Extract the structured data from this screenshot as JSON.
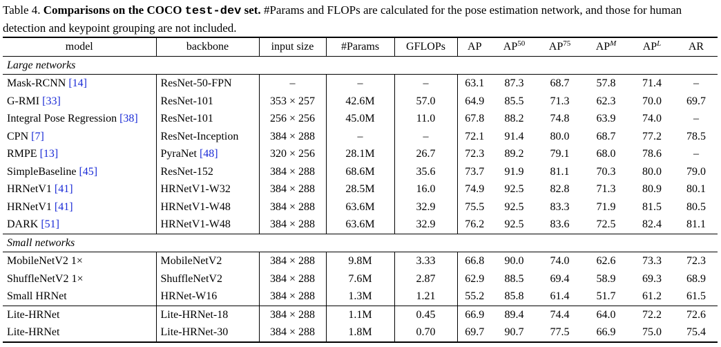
{
  "caption": {
    "label": "Table 4.",
    "bold_title_pre": "Comparisons on the COCO",
    "bold_title_mono": "test-dev",
    "bold_title_post": "set.",
    "rest": "#Params and FLOPs are calculated for the pose estimation network, and those for human detection and keypoint grouping are not included."
  },
  "columns": {
    "model": "model",
    "backbone": "backbone",
    "input_size": "input size",
    "params": "#Params",
    "gflops": "GFLOPs",
    "ap": "AP",
    "ap50_base": "AP",
    "ap50_sup": "50",
    "ap75_base": "AP",
    "ap75_sup": "75",
    "apm_base": "AP",
    "apm_sup": "M",
    "apl_base": "AP",
    "apl_sup": "L",
    "ar": "AR"
  },
  "sections": {
    "large": "Large networks",
    "small": "Small networks"
  },
  "rows": [
    {
      "model": "Mask-RCNN",
      "ref": "[14]",
      "backbone": "ResNet-50-FPN",
      "backbone_ref": "",
      "input": "–",
      "params": "–",
      "gflops": "–",
      "ap": "63.1",
      "ap50": "87.3",
      "ap75": "68.7",
      "apm": "57.8",
      "apl": "71.4",
      "ar": "–"
    },
    {
      "model": "G-RMI",
      "ref": "[33]",
      "backbone": "ResNet-101",
      "backbone_ref": "",
      "input": "353 × 257",
      "params": "42.6M",
      "gflops": "57.0",
      "ap": "64.9",
      "ap50": "85.5",
      "ap75": "71.3",
      "apm": "62.3",
      "apl": "70.0",
      "ar": "69.7"
    },
    {
      "model": "Integral Pose Regression",
      "ref": "[38]",
      "backbone": "ResNet-101",
      "backbone_ref": "",
      "input": "256 × 256",
      "params": "45.0M",
      "gflops": "11.0",
      "ap": "67.8",
      "ap50": "88.2",
      "ap75": "74.8",
      "apm": "63.9",
      "apl": "74.0",
      "ar": "–"
    },
    {
      "model": "CPN",
      "ref": "[7]",
      "backbone": "ResNet-Inception",
      "backbone_ref": "",
      "input": "384 × 288",
      "params": "–",
      "gflops": "–",
      "ap": "72.1",
      "ap50": "91.4",
      "ap75": "80.0",
      "apm": "68.7",
      "apl": "77.2",
      "ar": "78.5"
    },
    {
      "model": "RMPE",
      "ref": "[13]",
      "backbone": "PyraNet",
      "backbone_ref": "[48]",
      "input": "320 × 256",
      "params": "28.1M",
      "gflops": "26.7",
      "ap": "72.3",
      "ap50": "89.2",
      "ap75": "79.1",
      "apm": "68.0",
      "apl": "78.6",
      "ar": "–"
    },
    {
      "model": "SimpleBaseline",
      "ref": "[45]",
      "backbone": "ResNet-152",
      "backbone_ref": "",
      "input": "384 × 288",
      "params": "68.6M",
      "gflops": "35.6",
      "ap": "73.7",
      "ap50": "91.9",
      "ap75": "81.1",
      "apm": "70.3",
      "apl": "80.0",
      "ar": "79.0"
    },
    {
      "model": "HRNetV1",
      "ref": "[41]",
      "backbone": "HRNetV1-W32",
      "backbone_ref": "",
      "input": "384 × 288",
      "params": "28.5M",
      "gflops": "16.0",
      "ap": "74.9",
      "ap50": "92.5",
      "ap75": "82.8",
      "apm": "71.3",
      "apl": "80.9",
      "ar": "80.1"
    },
    {
      "model": "HRNetV1",
      "ref": "[41]",
      "backbone": "HRNetV1-W48",
      "backbone_ref": "",
      "input": "384 × 288",
      "params": "63.6M",
      "gflops": "32.9",
      "ap": "75.5",
      "ap50": "92.5",
      "ap75": "83.3",
      "apm": "71.9",
      "apl": "81.5",
      "ar": "80.5"
    },
    {
      "model": "DARK",
      "ref": "[51]",
      "backbone": "HRNetV1-W48",
      "backbone_ref": "",
      "input": "384 × 288",
      "params": "63.6M",
      "gflops": "32.9",
      "ap": "76.2",
      "ap50": "92.5",
      "ap75": "83.6",
      "apm": "72.5",
      "apl": "82.4",
      "ar": "81.1"
    },
    {
      "model": "MobileNetV2 1×",
      "ref": "",
      "backbone": "MobileNetV2",
      "backbone_ref": "",
      "input": "384 × 288",
      "params": "9.8M",
      "gflops": "3.33",
      "ap": "66.8",
      "ap50": "90.0",
      "ap75": "74.0",
      "apm": "62.6",
      "apl": "73.3",
      "ar": "72.3"
    },
    {
      "model": "ShuffleNetV2 1×",
      "ref": "",
      "backbone": "ShuffleNetV2",
      "backbone_ref": "",
      "input": "384 × 288",
      "params": "7.6M",
      "gflops": "2.87",
      "ap": "62.9",
      "ap50": "88.5",
      "ap75": "69.4",
      "apm": "58.9",
      "apl": "69.3",
      "ar": "68.9"
    },
    {
      "model": "Small HRNet",
      "ref": "",
      "backbone": "HRNet-W16",
      "backbone_ref": "",
      "input": "384 × 288",
      "params": "1.3M",
      "gflops": "1.21",
      "ap": "55.2",
      "ap50": "85.8",
      "ap75": "61.4",
      "apm": "51.7",
      "apl": "61.2",
      "ar": "61.5"
    },
    {
      "model": "Lite-HRNet",
      "ref": "",
      "backbone": "Lite-HRNet-18",
      "backbone_ref": "",
      "input": "384 × 288",
      "params": "1.1M",
      "gflops": "0.45",
      "ap": "66.9",
      "ap50": "89.4",
      "ap75": "74.4",
      "apm": "64.0",
      "apl": "72.2",
      "ar": "72.6"
    },
    {
      "model": "Lite-HRNet",
      "ref": "",
      "backbone": "Lite-HRNet-30",
      "backbone_ref": "",
      "input": "384 × 288",
      "params": "1.8M",
      "gflops": "0.70",
      "ap": "69.7",
      "ap50": "90.7",
      "ap75": "77.5",
      "apm": "66.9",
      "apl": "75.0",
      "ar": "75.4"
    }
  ]
}
